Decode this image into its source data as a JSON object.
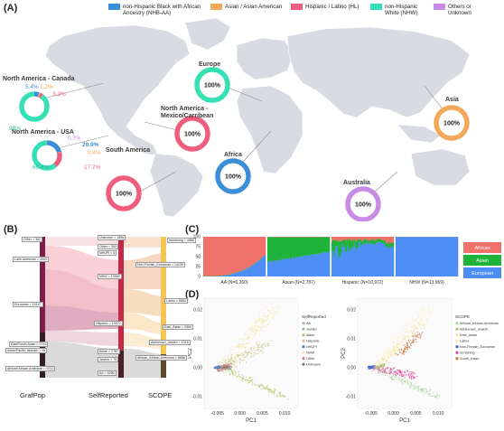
{
  "panels": {
    "a": "(A)",
    "b": "(B)",
    "c": "(C)",
    "d": "(D)"
  },
  "legend": [
    {
      "label": "non-Hispanic Black with African Ancestry (NHB-AA)",
      "color": "#3b8fd9"
    },
    {
      "label": "Asian / Asian American",
      "color": "#f2a95a"
    },
    {
      "label": "Hispanic / Latino (HL)",
      "color": "#ef5d7f"
    },
    {
      "label": "non-Hispanic White (NHW)",
      "color": "#35e0b5"
    },
    {
      "label": "Others or Unknown",
      "color": "#c98be6"
    }
  ],
  "map": {
    "regions": [
      {
        "name": "North America - Canada",
        "pct_labels": [
          "5.4%",
          "1.2%",
          "3.3%",
          "90%"
        ]
      },
      {
        "name": "North America - USA",
        "pct_labels": [
          "0.7%",
          "20.9%",
          "0.4%",
          "17.7%",
          "60.4%"
        ]
      },
      {
        "name": "Europe",
        "center": "100%"
      },
      {
        "name": "North America - Mexico/Carribean",
        "center": "100%"
      },
      {
        "name": "South America",
        "center": "100%"
      },
      {
        "name": "Africa",
        "center": "100%"
      },
      {
        "name": "Asia",
        "center": "100%"
      },
      {
        "name": "Australia",
        "center": "100%"
      }
    ]
  },
  "sankey": {
    "axis_labels": [
      "GrafPop",
      "SelfReported",
      "SCOPE"
    ],
    "left_nodes": [
      "Other = 362",
      "Latin American = 4909",
      "European = 14147",
      "East/South Asian = 2749",
      "Asian/Pacific Islander = 94",
      "African/African American = 6713"
    ],
    "mid_nodes": [
      "Unknown = 1896",
      "Other = 362",
      "NHUPI = 6",
      "NHW = 13969",
      "Hispanic = 10972",
      "Asian = 2787",
      "Jewish = 78",
      "AA = 6260"
    ],
    "right_nodes": [
      "remaining = 4888",
      "Non-Finnish_European = 14239",
      "Latino = 5863",
      "East_Asian = 2650",
      "Ashkenazi_Jewish = 1318",
      "African_African-American = 6886"
    ]
  },
  "chart_data": [
    {
      "type": "bar",
      "panel": "C",
      "ylim": [
        0,
        100
      ],
      "yticks": [
        "0",
        "25",
        "50",
        "75",
        "100"
      ],
      "categories": [
        "AA (N=6,260)",
        "Asian (N=2,787)",
        "Hispanic (N=10,972)",
        "NHW (N=13,969)"
      ],
      "series": [
        {
          "name": "African",
          "color": "#f0706a"
        },
        {
          "name": "Asian",
          "color": "#1fb33a"
        },
        {
          "name": "European",
          "color": "#4c8ef5"
        }
      ]
    },
    {
      "type": "scatter",
      "panel": "D-left",
      "xlabel": "PC1",
      "ylabel": "PC2",
      "xticks": [
        "-0.005",
        "0.000",
        "0.005",
        "0.010"
      ],
      "yticks": [
        "0.02",
        "0.01",
        "0.00",
        "-0.01"
      ],
      "legend_title": "SelfReported",
      "series": [
        {
          "name": "AA",
          "color": "#d9a8a0"
        },
        {
          "name": "Jewish",
          "color": "#8fc98c"
        },
        {
          "name": "Asian",
          "color": "#b4c869"
        },
        {
          "name": "Hispanic",
          "color": "#c9c98a"
        },
        {
          "name": "NHUPI",
          "color": "#4a7fc1"
        },
        {
          "name": "NHW",
          "color": "#f4e6a6"
        },
        {
          "name": "Other",
          "color": "#c97e7e"
        },
        {
          "name": "Unknown",
          "color": "#7a7a7a"
        }
      ]
    },
    {
      "type": "scatter",
      "panel": "D-right",
      "xlabel": "PC1",
      "ylabel": "PC2",
      "xticks": [
        "-0.005",
        "0.000",
        "0.005",
        "0.010"
      ],
      "yticks": [
        "0.02",
        "0.01",
        "0.00",
        "-0.01"
      ],
      "legend_title": "SCOPE",
      "series": [
        {
          "name": "African_African-American",
          "color": "#a7d3a0"
        },
        {
          "name": "Ashkenazi_Jewish",
          "color": "#b0c06a"
        },
        {
          "name": "East_Asian",
          "color": "#f3e3a0"
        },
        {
          "name": "Latino",
          "color": "#f6f0c8"
        },
        {
          "name": "Non-Finnish_European",
          "color": "#4a66c1"
        },
        {
          "name": "remaining",
          "color": "#e0449a"
        },
        {
          "name": "South_Asian",
          "color": "#c9733a"
        }
      ]
    }
  ]
}
